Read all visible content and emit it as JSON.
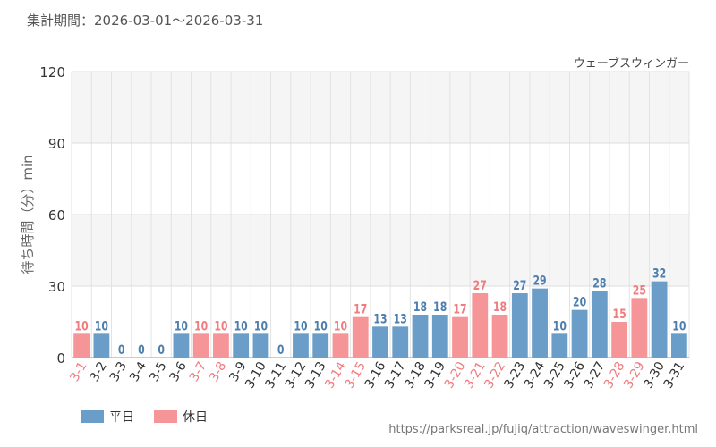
{
  "header": {
    "period": "集計期間：2026-03-01〜2026-03-31"
  },
  "footer": {
    "url": "https://parksreal.jp/fujiq/attraction/waveswinger.html"
  },
  "colors": {
    "weekday": "#6a9ec9",
    "holiday": "#f59598",
    "weekday_label": "#4d7fae",
    "holiday_label": "#f07c80"
  },
  "chart_data": {
    "type": "bar",
    "title": "ウェーブスウィンガー",
    "ylabel": "待ち時間（分）min",
    "xlabel": "",
    "ylim": [
      0,
      120
    ],
    "yticks": [
      0,
      30,
      60,
      90,
      120
    ],
    "grid": true,
    "legend_position": "bottom-left",
    "categories": [
      "3-1",
      "3-2",
      "3-3",
      "3-4",
      "3-5",
      "3-6",
      "3-7",
      "3-8",
      "3-9",
      "3-10",
      "3-11",
      "3-12",
      "3-13",
      "3-14",
      "3-15",
      "3-16",
      "3-17",
      "3-18",
      "3-19",
      "3-20",
      "3-21",
      "3-22",
      "3-23",
      "3-24",
      "3-25",
      "3-26",
      "3-27",
      "3-28",
      "3-29",
      "3-30",
      "3-31"
    ],
    "values": [
      10,
      10,
      0,
      0,
      0,
      10,
      10,
      10,
      10,
      10,
      0,
      10,
      10,
      10,
      17,
      13,
      13,
      18,
      18,
      17,
      27,
      18,
      27,
      29,
      10,
      20,
      28,
      15,
      25,
      32,
      10
    ],
    "day_type": [
      "holiday",
      "weekday",
      "weekday",
      "weekday",
      "weekday",
      "weekday",
      "holiday",
      "holiday",
      "weekday",
      "weekday",
      "weekday",
      "weekday",
      "weekday",
      "holiday",
      "holiday",
      "weekday",
      "weekday",
      "weekday",
      "weekday",
      "holiday",
      "holiday",
      "holiday",
      "weekday",
      "weekday",
      "weekday",
      "weekday",
      "weekday",
      "holiday",
      "holiday",
      "weekday",
      "weekday"
    ],
    "series": [
      {
        "key": "weekday",
        "name": "平日"
      },
      {
        "key": "holiday",
        "name": "休日"
      }
    ]
  }
}
